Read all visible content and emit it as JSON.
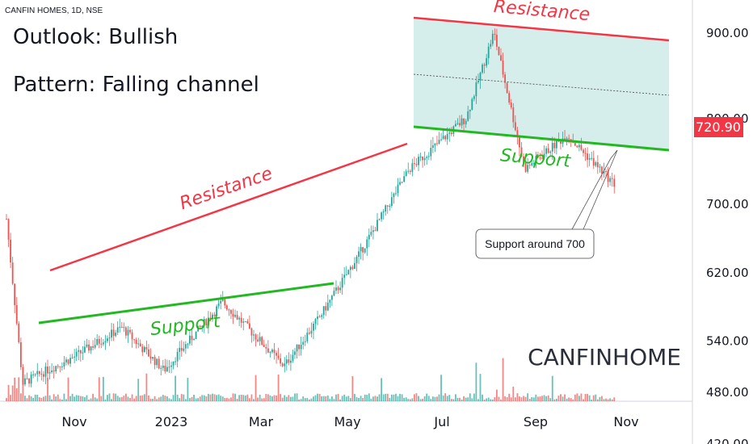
{
  "header": {
    "symbol_line": "CANFIN HOMES, 1D, NSE"
  },
  "annotations": {
    "outlook": "Outlook: Bullish",
    "pattern": "Pattern: Falling channel",
    "watermark": "CANFINHOME",
    "callout": "Support around 700",
    "resistance_label": "Resistance",
    "support_label": "Support"
  },
  "chart_data": {
    "type": "candlestick",
    "symbol": "CANFIN HOMES",
    "interval": "1D",
    "exchange": "NSE",
    "y_ticks": [
      "900.00",
      "800.00",
      "720.90",
      "700.00",
      "620.00",
      "540.00",
      "480.00",
      "420.00"
    ],
    "y_tick_values": [
      900,
      800,
      700,
      620,
      540,
      480,
      420
    ],
    "x_ticks": [
      "Nov",
      "2023",
      "Mar",
      "May",
      "Jul",
      "Sep",
      "Nov"
    ],
    "last_price": "720.90",
    "approx_close_path": [
      {
        "date": "2022-09-30",
        "close": 682
      },
      {
        "date": "2022-10-10",
        "close": 490
      },
      {
        "date": "2022-10-25",
        "close": 505
      },
      {
        "date": "2022-11-10",
        "close": 520
      },
      {
        "date": "2022-12-10",
        "close": 555
      },
      {
        "date": "2023-01-05",
        "close": 505
      },
      {
        "date": "2023-02-10",
        "close": 585
      },
      {
        "date": "2023-03-20",
        "close": 510
      },
      {
        "date": "2023-04-10",
        "close": 565
      },
      {
        "date": "2023-05-05",
        "close": 640
      },
      {
        "date": "2023-06-05",
        "close": 740
      },
      {
        "date": "2023-07-10",
        "close": 800
      },
      {
        "date": "2023-07-27",
        "close": 900
      },
      {
        "date": "2023-08-15",
        "close": 740
      },
      {
        "date": "2023-09-10",
        "close": 780
      },
      {
        "date": "2023-10-10",
        "close": 721
      }
    ],
    "colors": {
      "up": "#26a69a",
      "down": "#ef5350",
      "resistance": "#f23645",
      "support": "#22b822",
      "channel_fill": "#b2dfdb"
    }
  }
}
